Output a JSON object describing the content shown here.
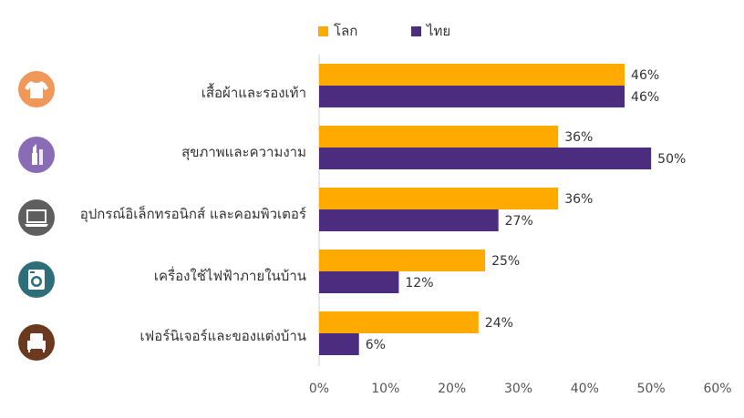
{
  "legend": [
    {
      "label": "โลก",
      "color": "#FFAA00"
    },
    {
      "label": "ไทย",
      "color": "#4B2C7F"
    }
  ],
  "categories": [
    {
      "label": "เสื้อผ้าและรองเท้า",
      "icon": "tshirt-icon",
      "icon_color": "#F0975A"
    },
    {
      "label": "สุขภาพและความงาม",
      "icon": "lipstick-icon",
      "icon_color": "#8A6BB5"
    },
    {
      "label": "อุปกรณ์อิเล็กทรอนิกส์  และคอมพิวเตอร์",
      "icon": "laptop-icon",
      "icon_color": "#5E5E5E"
    },
    {
      "label": "เครื่องใช้ไฟฟ้าภายในบ้าน",
      "icon": "washing-machine-icon",
      "icon_color": "#2E6E78"
    },
    {
      "label": "เฟอร์นิเจอร์และของแต่งบ้าน",
      "icon": "armchair-icon",
      "icon_color": "#6B3A1E"
    }
  ],
  "chart_data": {
    "type": "bar",
    "orientation": "horizontal",
    "categories": [
      "เสื้อผ้าและรองเท้า",
      "สุขภาพและความงาม",
      "อุปกรณ์อิเล็กทรอนิกส์  และคอมพิวเตอร์",
      "เครื่องใช้ไฟฟ้าภายในบ้าน",
      "เฟอร์นิเจอร์และของแต่งบ้าน"
    ],
    "series": [
      {
        "name": "โลก",
        "values": [
          46,
          36,
          36,
          25,
          24
        ],
        "labels": [
          "46%",
          "36%",
          "36%",
          "25%",
          "24%"
        ],
        "color": "#FFAA00"
      },
      {
        "name": "ไทย",
        "values": [
          46,
          50,
          27,
          12,
          6
        ],
        "labels": [
          "46%",
          "50%",
          "27%",
          "12%",
          "6%"
        ],
        "color": "#4B2C7F"
      }
    ],
    "xlim": [
      0,
      60
    ],
    "xticks": [
      "0%",
      "10%",
      "20%",
      "30%",
      "40%",
      "50%",
      "60%"
    ],
    "xtick_values": [
      0,
      10,
      20,
      30,
      40,
      50,
      60
    ],
    "legend_position": "top",
    "grid": false
  }
}
